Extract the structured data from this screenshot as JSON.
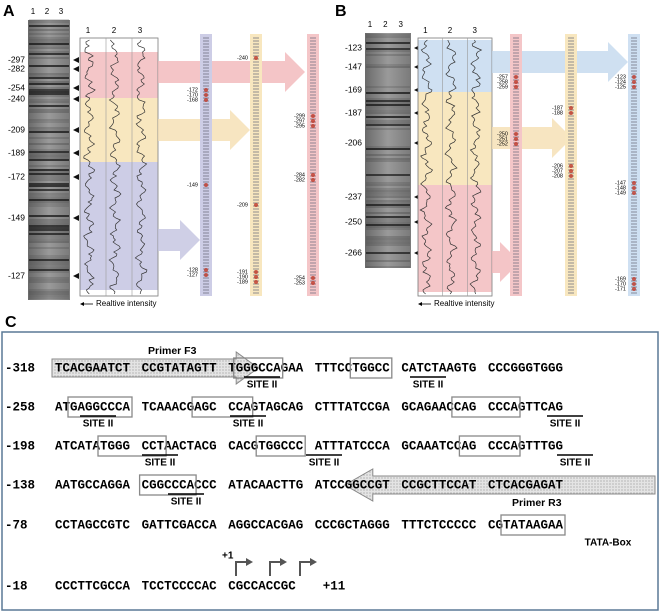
{
  "panel_a": {
    "label": "A",
    "gel_lanes": [
      "1",
      "2",
      "3"
    ],
    "markers": [
      "-297",
      "-282",
      "-254",
      "-240",
      "-209",
      "-189",
      "-172",
      "-149",
      "-127"
    ],
    "trace_lanes": [
      "1",
      "2",
      "3"
    ],
    "axis_label": "Realtive intensity",
    "strip_labels": [
      [
        [
          "-172",
          "-170",
          "-168"
        ],
        [
          "-149"
        ],
        [
          "-128",
          "-127"
        ]
      ],
      [
        [
          "-240"
        ],
        [
          "-209"
        ],
        [
          "-191",
          "-190",
          "-189"
        ]
      ],
      [
        [
          "-299",
          "-297",
          "-295"
        ],
        [
          "-284",
          "-282"
        ],
        [
          "-254",
          "-253"
        ]
      ]
    ]
  },
  "panel_b": {
    "label": "B",
    "gel_lanes": [
      "1",
      "2",
      "3"
    ],
    "markers": [
      "-123",
      "-147",
      "-169",
      "-187",
      "-206",
      "-237",
      "-250",
      "-266"
    ],
    "trace_lanes": [
      "1",
      "2",
      "3"
    ],
    "axis_label": "Realtive intensity",
    "strip_labels": [
      [
        [
          "-257",
          "-258",
          "-259"
        ],
        [
          "-250",
          "-251",
          "-252"
        ]
      ],
      [
        [
          "-187",
          "-188"
        ],
        [
          "-206",
          "-207",
          "-208"
        ]
      ],
      [
        [
          "-123",
          "-124",
          "-125"
        ],
        [
          "-147",
          "-148",
          "-149"
        ],
        [
          "-169",
          "-170",
          "-171"
        ]
      ]
    ]
  },
  "panel_c": {
    "label": "C",
    "rows": [
      {
        "position": "-318",
        "groups": [
          "TCACGAATCT",
          "CCGTATAGTT",
          "TGGGCCAGAA",
          "TTTCCTGGCC",
          "CATCTAAGTG",
          "CCCGGGTGGG"
        ]
      },
      {
        "position": "-258",
        "groups": [
          "ATGAGGCCCA",
          "TCAAACGAGC",
          "CCAGTAGCAG",
          "CTTTATCCGA",
          "GCAGAACCAG",
          "CCCAGTTCAG"
        ]
      },
      {
        "position": "-198",
        "groups": [
          "ATCATATGGG",
          "CCTAACTACG",
          "CACGTGGCCC",
          "ATTTATCCCA",
          "GCAAATCCAG",
          "CCCAGTTTGG"
        ]
      },
      {
        "position": "-138",
        "groups": [
          "AATGCCAGGA",
          "CGGCCCACCC",
          "ATACAACTTG",
          "ATCCGGCCGT",
          "CCGCTTCCAT",
          "CTCACGAGAT"
        ]
      },
      {
        "position": "-78",
        "groups": [
          "CCTAGCCGTC",
          "GATTCGACCA",
          "AGGCCACGAG",
          "CCCGCTAGGG",
          "TTTCTCCCCC",
          "CGTATAAGAA"
        ]
      },
      {
        "position": "-18",
        "groups": [
          "CCCTTCGCCA",
          "TCCTCCCCAC",
          "CGCCACCGC"
        ]
      }
    ],
    "end_label": "+11",
    "primer_f3": "Primer F3",
    "primer_r3": "Primer R3",
    "site_labels": [
      "SITE II",
      "SITE II",
      "SITE II",
      "SITE II",
      "SITE II",
      "SITE II",
      "SITE II",
      "SITE II",
      "SITE II"
    ],
    "tata_label": "TATA-Box",
    "tss_label": "+1"
  }
}
